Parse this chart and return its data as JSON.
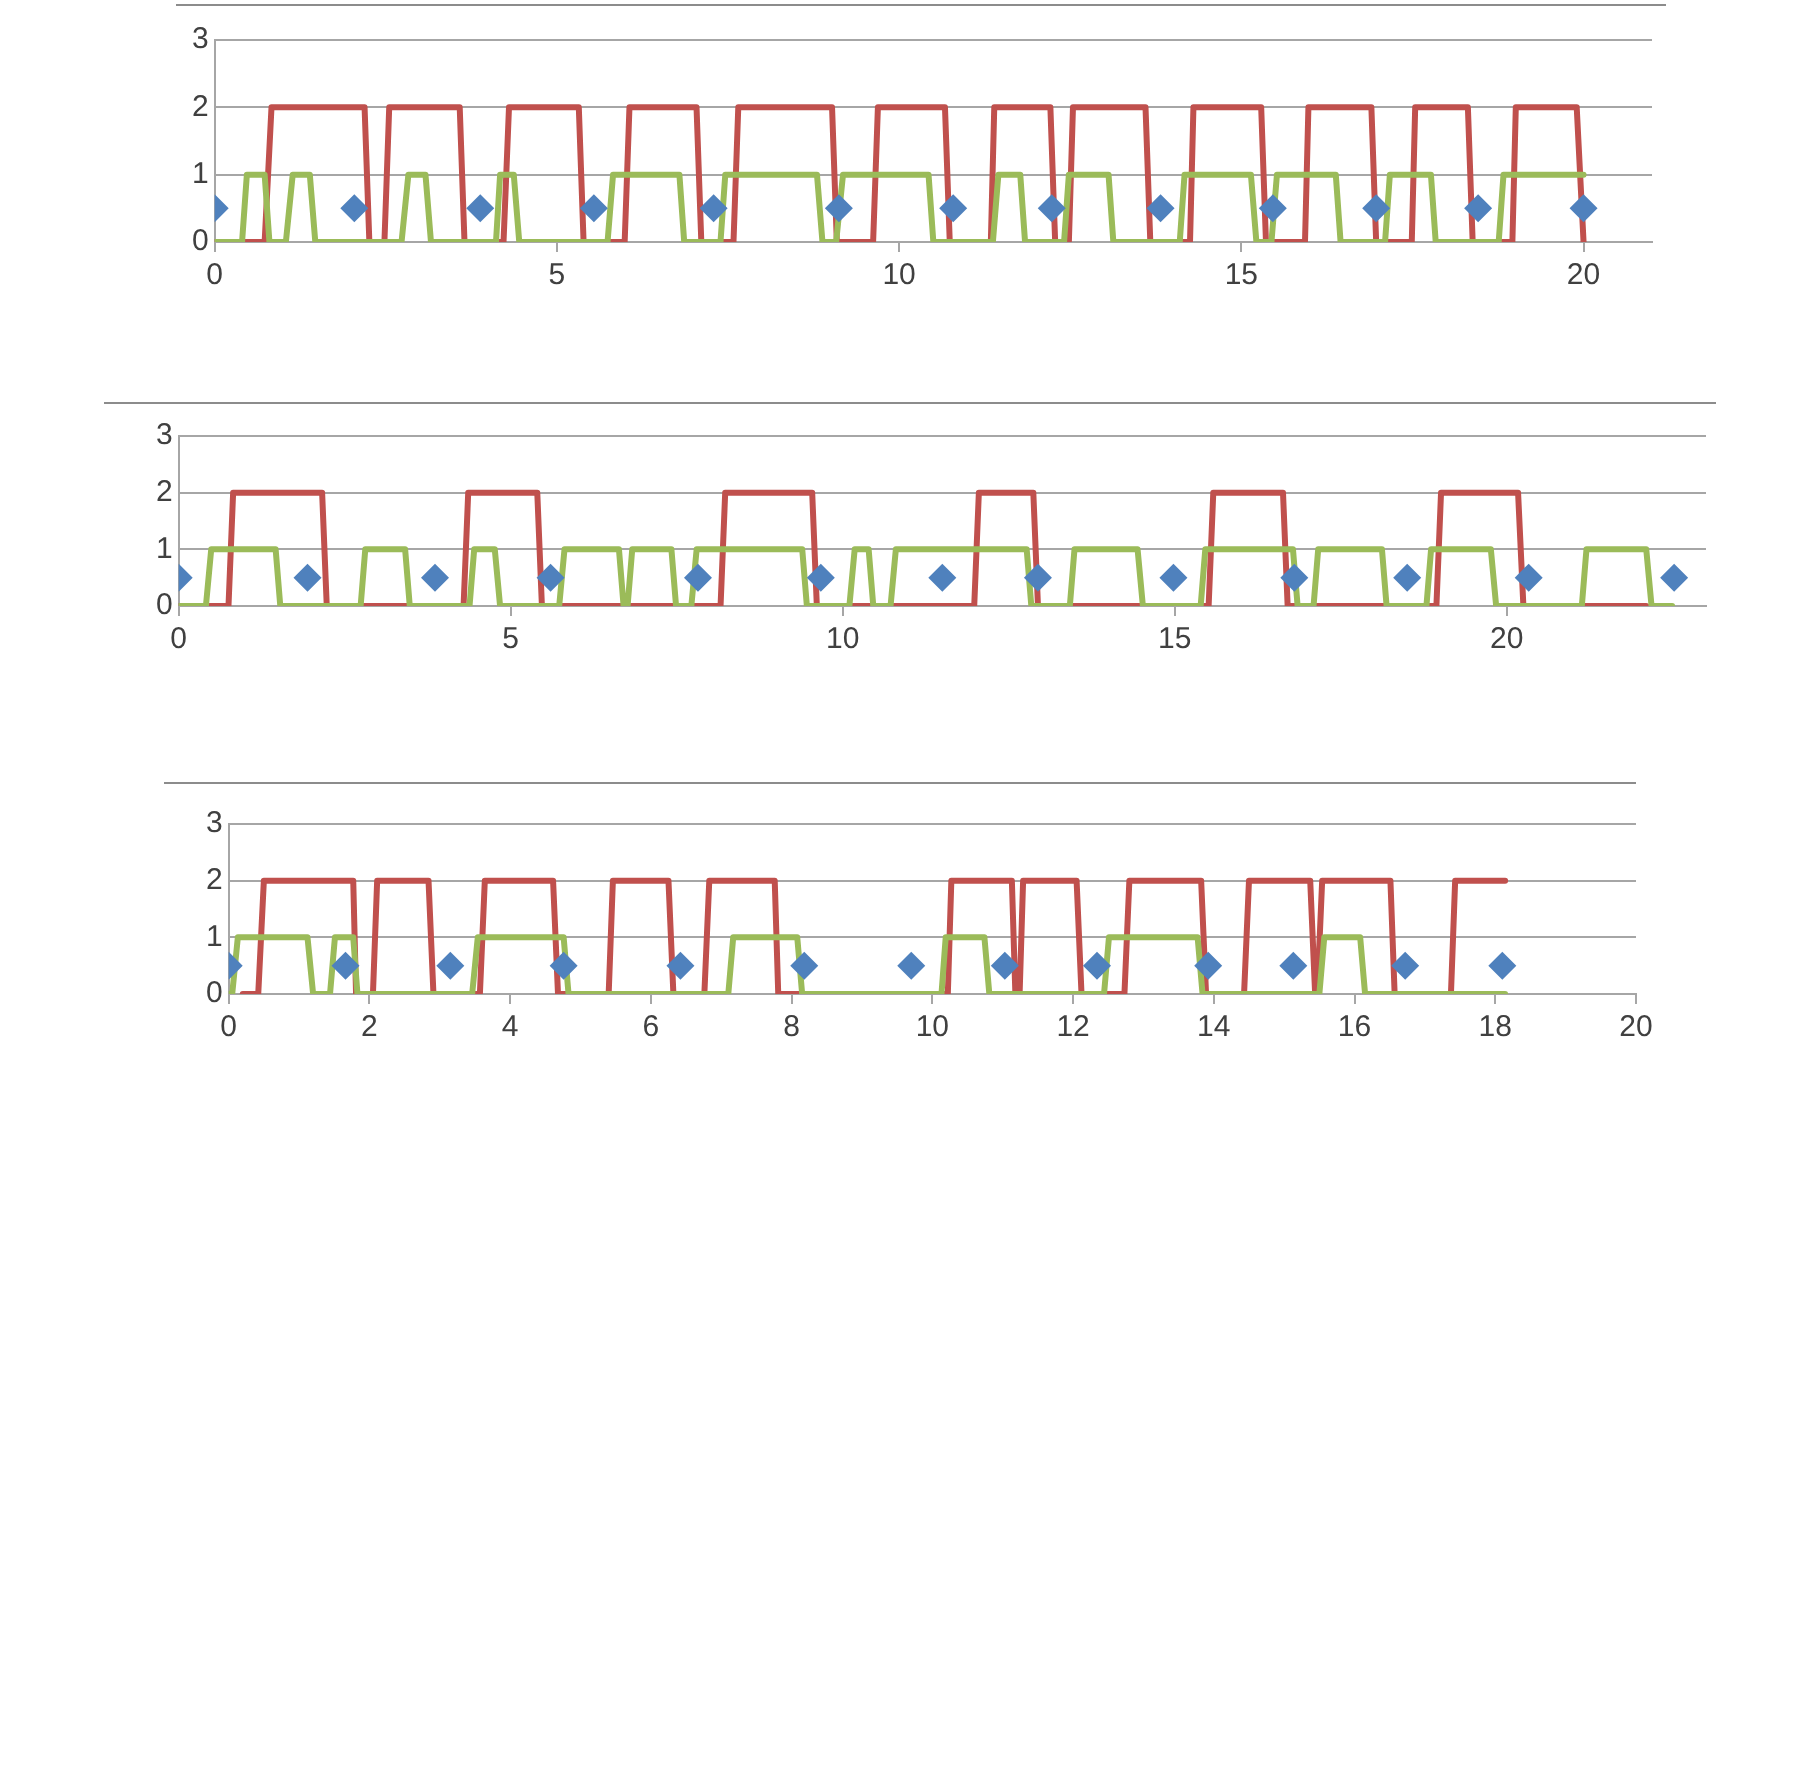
{
  "chart_data": [
    {
      "type": "line",
      "xlim": [
        0,
        21
      ],
      "xticks": [
        0,
        5,
        10,
        15,
        20
      ],
      "ylim": [
        0,
        3
      ],
      "yticks": [
        0,
        1,
        2,
        3
      ],
      "grid": "y",
      "legend": false,
      "series": [
        {
          "type": "line",
          "marker": "none",
          "color": "#c0504d",
          "x": [
            0,
            0.73,
            0.83,
            2.19,
            2.26,
            2.48,
            2.55,
            3.58,
            3.65,
            4.22,
            4.3,
            5.32,
            5.39,
            5.99,
            6.06,
            7.04,
            7.11,
            7.58,
            7.65,
            9.02,
            9.09,
            9.62,
            9.69,
            10.67,
            10.74,
            11.34,
            11.39,
            12.21,
            12.28,
            12.48,
            12.54,
            13.6,
            13.67,
            14.25,
            14.3,
            15.29,
            15.36,
            15.93,
            15.98,
            16.9,
            16.97,
            17.49,
            17.54,
            18.31,
            18.38,
            18.96,
            19.01,
            19.9,
            20.0
          ],
          "values": [
            0,
            0,
            2,
            2,
            0,
            0,
            2,
            2,
            0,
            0,
            2,
            2,
            0,
            0,
            2,
            2,
            0,
            0,
            2,
            2,
            0,
            0,
            2,
            2,
            0,
            0,
            2,
            2,
            0,
            0,
            2,
            2,
            0,
            0,
            2,
            2,
            0,
            0,
            2,
            2,
            0,
            0,
            2,
            2,
            0,
            0,
            2,
            2,
            0
          ]
        },
        {
          "type": "line",
          "marker": "none",
          "color": "#9bbb59",
          "x": [
            0,
            0.4,
            0.47,
            0.73,
            0.8,
            1.04,
            1.14,
            1.39,
            1.47,
            2.73,
            2.83,
            3.08,
            3.16,
            4.11,
            4.17,
            4.37,
            4.45,
            5.74,
            5.82,
            6.79,
            6.86,
            7.39,
            7.46,
            8.8,
            8.88,
            9.08,
            9.18,
            10.43,
            10.5,
            11.37,
            11.45,
            11.77,
            11.84,
            12.41,
            12.48,
            13.06,
            13.13,
            14.1,
            14.17,
            15.14,
            15.22,
            15.44,
            15.52,
            16.38,
            16.45,
            17.1,
            17.17,
            17.77,
            17.84,
            18.76,
            18.83,
            20.0
          ],
          "values": [
            0,
            0,
            1,
            1,
            0,
            0,
            1,
            1,
            0,
            0,
            1,
            1,
            0,
            0,
            1,
            1,
            0,
            0,
            1,
            1,
            0,
            0,
            1,
            1,
            0,
            0,
            1,
            1,
            0,
            0,
            1,
            1,
            0,
            0,
            1,
            1,
            0,
            0,
            1,
            1,
            0,
            0,
            1,
            1,
            0,
            0,
            1,
            1,
            0,
            0,
            1,
            1
          ]
        },
        {
          "type": "scatter",
          "marker": "diamond",
          "color": "#4f81bd",
          "x": [
            0,
            2.04,
            3.88,
            5.54,
            7.29,
            9.12,
            10.79,
            12.23,
            13.82,
            15.46,
            16.97,
            18.46,
            20.0
          ],
          "values": [
            0.5,
            0.5,
            0.5,
            0.5,
            0.5,
            0.5,
            0.5,
            0.5,
            0.5,
            0.5,
            0.5,
            0.5,
            0.5
          ]
        }
      ]
    },
    {
      "type": "line",
      "xlim": [
        0,
        23
      ],
      "xticks": [
        0,
        5,
        10,
        15,
        20
      ],
      "ylim": [
        0,
        3
      ],
      "yticks": [
        0,
        1,
        2,
        3
      ],
      "grid": "y",
      "legend": false,
      "series": [
        {
          "type": "line",
          "marker": "none",
          "color": "#c0504d",
          "x": [
            0,
            0.75,
            0.82,
            2.16,
            2.23,
            4.29,
            4.36,
            5.4,
            5.47,
            8.16,
            8.23,
            9.54,
            9.61,
            11.98,
            12.05,
            12.87,
            12.94,
            15.51,
            15.58,
            16.63,
            16.7,
            18.94,
            19.01,
            20.17,
            20.25,
            22.1
          ],
          "values": [
            0,
            0,
            2,
            2,
            0,
            0,
            2,
            2,
            0,
            0,
            2,
            2,
            0,
            0,
            2,
            2,
            0,
            0,
            2,
            2,
            0,
            0,
            2,
            2,
            0,
            0
          ]
        },
        {
          "type": "line",
          "marker": "none",
          "color": "#9bbb59",
          "x": [
            0,
            0.41,
            0.49,
            1.46,
            1.53,
            2.74,
            2.81,
            3.41,
            3.48,
            4.38,
            4.45,
            4.76,
            4.84,
            5.73,
            5.81,
            6.63,
            6.7,
            6.76,
            6.83,
            7.42,
            7.49,
            7.72,
            7.8,
            9.39,
            9.46,
            10.1,
            10.18,
            10.39,
            10.46,
            10.72,
            10.8,
            12.77,
            12.84,
            13.42,
            13.49,
            14.44,
            14.52,
            15.39,
            15.46,
            16.78,
            16.85,
            17.09,
            17.16,
            18.12,
            18.19,
            18.79,
            18.86,
            19.76,
            19.84,
            21.13,
            21.2,
            22.1,
            22.18,
            22.49
          ],
          "values": [
            0,
            0,
            1,
            1,
            0,
            0,
            1,
            1,
            0,
            0,
            1,
            1,
            0,
            0,
            1,
            1,
            0,
            0,
            1,
            1,
            0,
            0,
            1,
            1,
            0,
            0,
            1,
            1,
            0,
            0,
            1,
            1,
            0,
            0,
            1,
            1,
            0,
            0,
            1,
            1,
            0,
            0,
            1,
            1,
            0,
            0,
            1,
            1,
            0,
            0,
            1,
            1,
            0,
            0
          ]
        },
        {
          "type": "scatter",
          "marker": "diamond",
          "color": "#4f81bd",
          "x": [
            0,
            1.94,
            3.86,
            5.6,
            7.82,
            9.67,
            11.5,
            12.94,
            14.98,
            16.8,
            18.5,
            20.33,
            22.52
          ],
          "values": [
            0.5,
            0.5,
            0.5,
            0.5,
            0.5,
            0.5,
            0.5,
            0.5,
            0.5,
            0.5,
            0.5,
            0.5,
            0.5
          ]
        }
      ]
    },
    {
      "type": "line",
      "xlim": [
        0,
        20
      ],
      "xticks": [
        0,
        2,
        4,
        6,
        8,
        10,
        12,
        14,
        16,
        18,
        20
      ],
      "ylim": [
        0,
        3
      ],
      "yticks": [
        0,
        1,
        2,
        3
      ],
      "grid": "y",
      "legend": false,
      "series": [
        {
          "type": "line",
          "marker": "none",
          "color": "#c0504d",
          "x": [
            0.2,
            0.42,
            0.5,
            1.77,
            1.81,
            2.05,
            2.11,
            2.84,
            2.91,
            3.57,
            3.64,
            4.61,
            4.68,
            5.4,
            5.46,
            6.25,
            6.32,
            6.76,
            6.83,
            7.76,
            7.81,
            10.22,
            10.27,
            11.13,
            11.18,
            11.24,
            11.29,
            12.05,
            12.12,
            12.73,
            12.8,
            13.82,
            13.89,
            14.43,
            14.5,
            15.37,
            15.44,
            15.47,
            15.54,
            16.51,
            16.57,
            17.37,
            17.43,
            18.14
          ],
          "values": [
            0,
            0,
            2,
            2,
            0,
            0,
            2,
            2,
            0,
            0,
            2,
            2,
            0,
            0,
            2,
            2,
            0,
            0,
            2,
            2,
            0,
            0,
            2,
            2,
            0,
            0,
            2,
            2,
            0,
            0,
            2,
            2,
            0,
            0,
            2,
            2,
            0,
            0,
            2,
            2,
            0,
            0,
            2,
            2
          ]
        },
        {
          "type": "line",
          "marker": "none",
          "color": "#9bbb59",
          "x": [
            0,
            0.05,
            0.13,
            1.12,
            1.2,
            1.44,
            1.51,
            1.77,
            1.83,
            3.46,
            3.54,
            4.76,
            4.83,
            7.1,
            7.17,
            8.08,
            8.15,
            10.13,
            10.19,
            10.74,
            10.81,
            12.44,
            12.51,
            13.77,
            13.84,
            15.5,
            15.57,
            16.08,
            16.15,
            18.14
          ],
          "values": [
            0,
            0,
            1,
            1,
            0,
            0,
            1,
            1,
            0,
            0,
            1,
            1,
            0,
            0,
            1,
            1,
            0,
            0,
            1,
            1,
            0,
            0,
            1,
            1,
            0,
            0,
            1,
            1,
            0,
            0
          ]
        },
        {
          "type": "scatter",
          "marker": "diamond",
          "color": "#4f81bd",
          "x": [
            0,
            1.66,
            3.15,
            4.76,
            6.42,
            8.18,
            9.7,
            11.03,
            12.34,
            13.92,
            15.13,
            16.72,
            18.1
          ],
          "values": [
            0.5,
            0.5,
            0.5,
            0.5,
            0.5,
            0.5,
            0.5,
            0.5,
            0.5,
            0.5,
            0.5,
            0.5,
            0.5
          ]
        }
      ]
    }
  ]
}
